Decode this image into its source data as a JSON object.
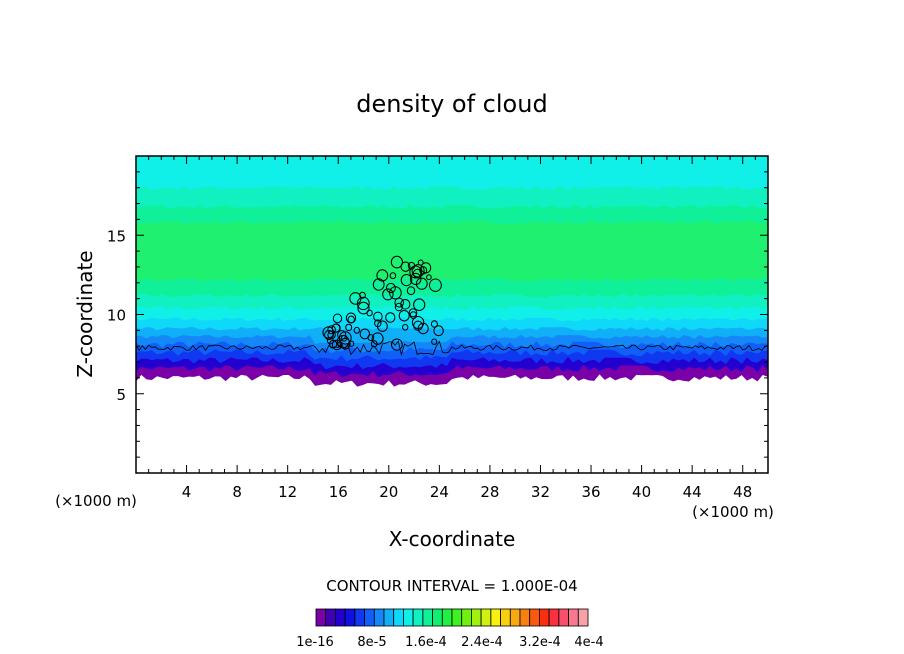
{
  "chart_data": {
    "type": "heatmap",
    "title": "density of cloud",
    "xlabel": "X-coordinate",
    "ylabel": "Z-coordinate",
    "x_unit_left": "(×1000 m)",
    "x_unit_right": "(×1000 m)",
    "xlim": [
      0,
      50
    ],
    "ylim": [
      0,
      20
    ],
    "x_ticks": [
      4,
      8,
      12,
      16,
      20,
      24,
      28,
      32,
      36,
      40,
      44,
      48
    ],
    "y_ticks": [
      5,
      10,
      15
    ],
    "contour_interval_text": "CONTOUR INTERVAL = 1.000E-04",
    "colorbar": {
      "labels": [
        "1e-16",
        "8e-5",
        "1.6e-4",
        "2.4e-4",
        "3.2e-4",
        "4e-4"
      ],
      "colors": [
        "#7a00a8",
        "#4000b4",
        "#2400d0",
        "#1010e0",
        "#1038f0",
        "#1060f8",
        "#1488f8",
        "#10b0f8",
        "#10d8f8",
        "#10f0e8",
        "#10f0c0",
        "#10f098",
        "#10f070",
        "#20f040",
        "#40f020",
        "#70f010",
        "#a0f010",
        "#d0f010",
        "#f8f010",
        "#f8d010",
        "#f8a810",
        "#f88010",
        "#f85810",
        "#f83010",
        "#f83040",
        "#f85068",
        "#f87890",
        "#f8a0a8"
      ]
    },
    "field": {
      "cloud_base_z": 6.2,
      "cloud_top_z": 19.5,
      "bands": [
        {
          "z0": 6.0,
          "z1": 6.6,
          "color": "#7a00a8"
        },
        {
          "z0": 6.6,
          "z1": 7.1,
          "color": "#2400d0"
        },
        {
          "z0": 7.1,
          "z1": 7.6,
          "color": "#1038f0"
        },
        {
          "z0": 7.6,
          "z1": 8.1,
          "color": "#1060f8"
        },
        {
          "z0": 8.1,
          "z1": 8.6,
          "color": "#1488f8"
        },
        {
          "z0": 8.6,
          "z1": 9.1,
          "color": "#10b0f8"
        },
        {
          "z0": 9.1,
          "z1": 9.7,
          "color": "#10d8f8"
        },
        {
          "z0": 9.7,
          "z1": 10.4,
          "color": "#10f0e8"
        },
        {
          "z0": 10.4,
          "z1": 11.2,
          "color": "#10f0c0"
        },
        {
          "z0": 11.2,
          "z1": 12.2,
          "color": "#10f098"
        },
        {
          "z0": 12.2,
          "z1": 15.8,
          "color": "#20f070"
        },
        {
          "z0": 15.8,
          "z1": 16.8,
          "color": "#10f098"
        },
        {
          "z0": 16.8,
          "z1": 18.0,
          "color": "#10f0c0"
        },
        {
          "z0": 18.0,
          "z1": 20.0,
          "color": "#10f0e8"
        }
      ]
    },
    "contour_base_z": 8.0,
    "convective_core_x": [
      14,
      25
    ]
  }
}
